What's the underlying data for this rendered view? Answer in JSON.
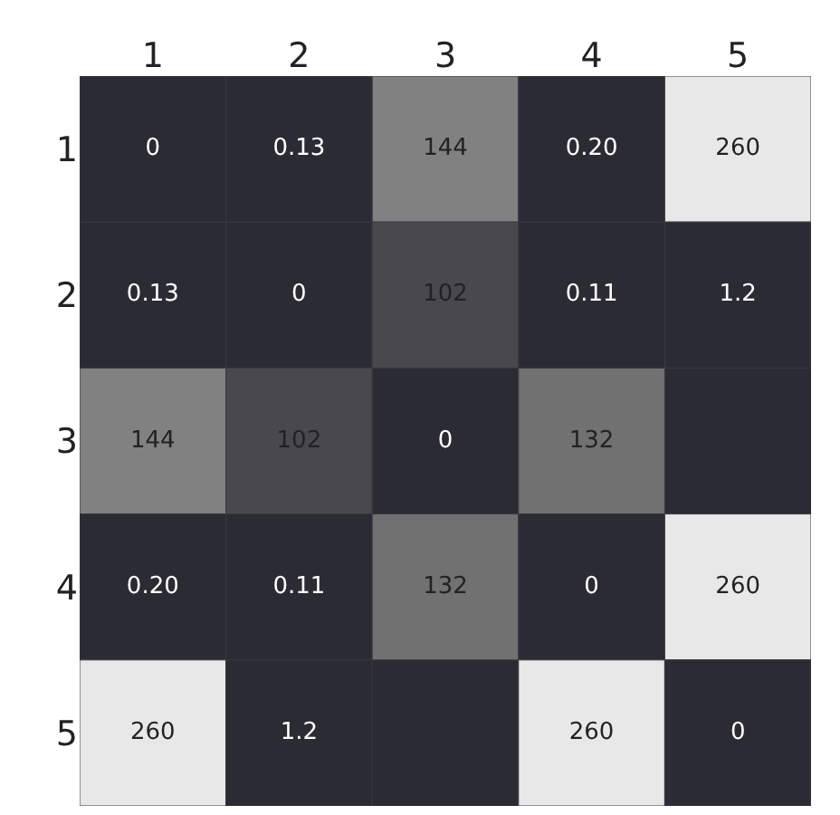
{
  "chart_data": {
    "type": "heatmap",
    "categories": [
      "1",
      "2",
      "3",
      "4",
      "5"
    ],
    "y_categories": [
      "1",
      "2",
      "3",
      "4",
      "5"
    ],
    "cells": [
      [
        0,
        0.13,
        144,
        0.2,
        260
      ],
      [
        0.13,
        0,
        102,
        0.11,
        1.2
      ],
      [
        144,
        102,
        0,
        132,
        null
      ],
      [
        0.2,
        0.11,
        132,
        0,
        260
      ],
      [
        260,
        1.2,
        null,
        260,
        0
      ]
    ],
    "cell_labels": [
      [
        "0",
        "0.13",
        "144",
        "0.20",
        "260"
      ],
      [
        "0.13",
        "0",
        "102",
        "0.11",
        "1.2"
      ],
      [
        "144",
        "102",
        "0",
        "132",
        null
      ],
      [
        "0.20",
        "0.11",
        "132",
        "0",
        "260"
      ],
      [
        "260",
        "1.2",
        null,
        "260",
        "0"
      ]
    ]
  }
}
